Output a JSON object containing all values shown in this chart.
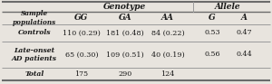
{
  "title_genotype": "Genotype",
  "title_allele": "Allele",
  "col_headers": [
    "GG",
    "GA",
    "AA",
    "G",
    "A"
  ],
  "row_header_label": "Sample\npopulations",
  "rows": [
    {
      "label": "Controls",
      "data": [
        "110 (0.29)",
        "181 (0.48)",
        "84 (0.22)",
        "0.53",
        "0.47"
      ]
    },
    {
      "label": "Late-onset\nAD patients",
      "data": [
        "65 (0.30)",
        "109 (0.51)",
        "40 (0.19)",
        "0.56",
        "0.44"
      ]
    },
    {
      "label": "Total",
      "data": [
        "175",
        "290",
        "124",
        "",
        ""
      ]
    }
  ],
  "bg_color": "#e8e4de",
  "text_color": "#1a1a1a",
  "line_color_thick": "#6b6b6b",
  "line_color_thin": "#9a9a9a"
}
